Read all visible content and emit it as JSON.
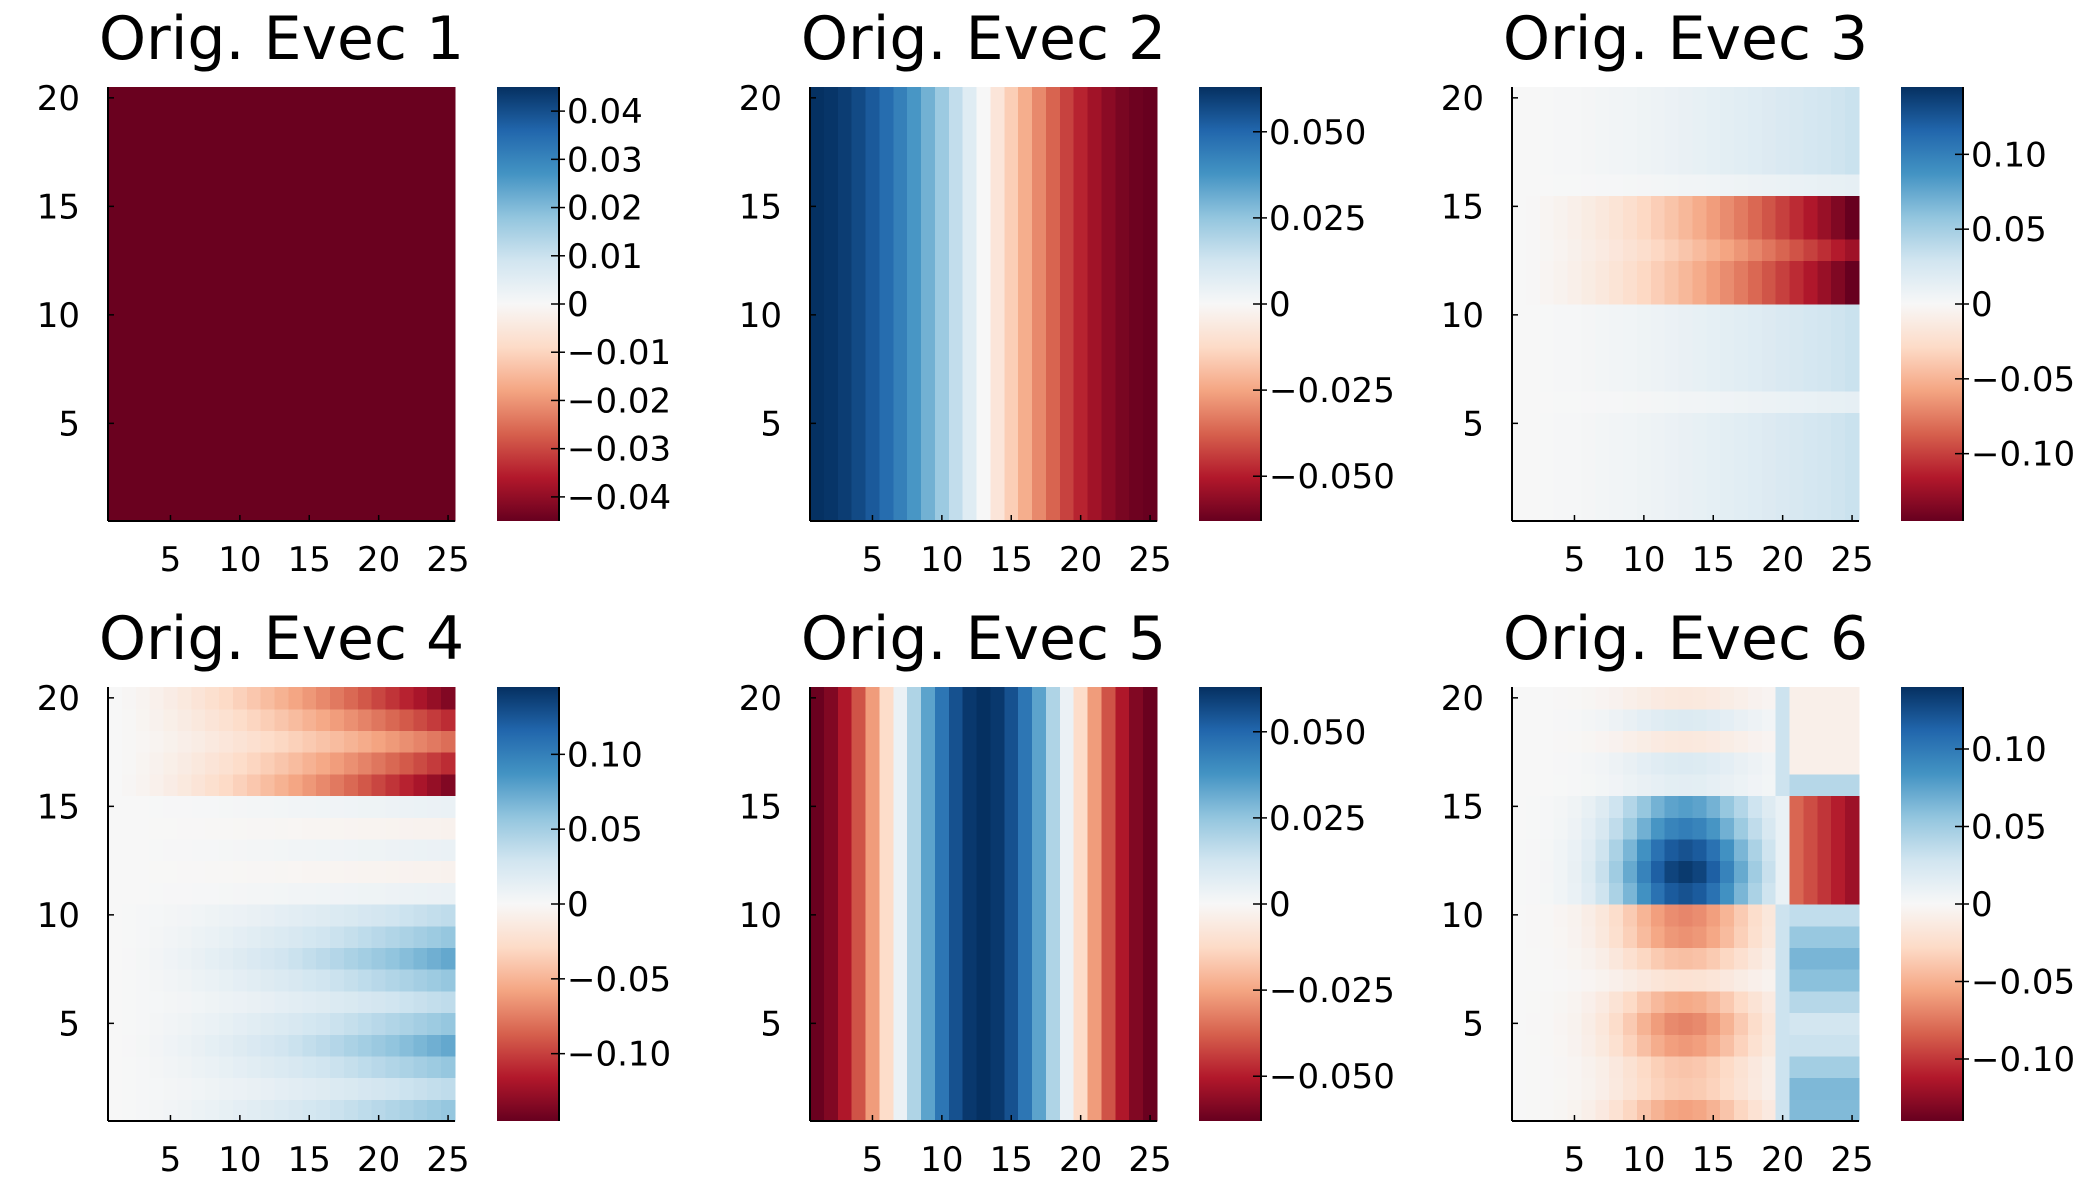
{
  "figure": {
    "layout": "grid",
    "rows": 2,
    "cols": 3
  },
  "colormap": {
    "name": "RdBu",
    "stops": [
      "#67001f",
      "#b2182b",
      "#d6604d",
      "#f4a582",
      "#fddbc7",
      "#f7f7f7",
      "#d1e5f0",
      "#92c5de",
      "#4393c3",
      "#2166ac",
      "#053061"
    ]
  },
  "chart_data": [
    {
      "type": "heatmap",
      "title": "Orig. Evec 1",
      "xlabel": "",
      "ylabel": "",
      "xlim": [
        0.5,
        25.5
      ],
      "ylim": [
        0.5,
        20.5
      ],
      "xticks": [
        5,
        10,
        15,
        20,
        25
      ],
      "yticks": [
        5,
        10,
        15,
        20
      ],
      "nx": 25,
      "ny": 20,
      "clim": [
        -0.045,
        0.045
      ],
      "cticks": [
        0.04,
        0.03,
        0.02,
        0.01,
        0,
        -0.01,
        -0.02,
        -0.03,
        -0.04
      ],
      "cticklabels": [
        "0.04",
        "0.03",
        "0.02",
        "0.01",
        "0",
        "−0.01",
        "−0.02",
        "−0.03",
        "−0.04"
      ],
      "pattern": "constant",
      "params": {
        "value": -0.0447
      }
    },
    {
      "type": "heatmap",
      "title": "Orig. Evec 2",
      "xlabel": "",
      "ylabel": "",
      "xlim": [
        0.5,
        25.5
      ],
      "ylim": [
        0.5,
        20.5
      ],
      "xticks": [
        5,
        10,
        15,
        20,
        25
      ],
      "yticks": [
        5,
        10,
        15,
        20
      ],
      "nx": 25,
      "ny": 20,
      "clim": [
        -0.063,
        0.063
      ],
      "cticks": [
        0.05,
        0.025,
        0,
        -0.025,
        -0.05
      ],
      "cticklabels": [
        "0.050",
        "0.025",
        "0",
        "−0.025",
        "−0.050"
      ],
      "pattern": "cos_x",
      "params": {
        "amp": 0.063,
        "freq": 1
      }
    },
    {
      "type": "heatmap",
      "title": "Orig. Evec 3",
      "xlabel": "",
      "ylabel": "",
      "xlim": [
        0.5,
        25.5
      ],
      "ylim": [
        0.5,
        20.5
      ],
      "xticks": [
        5,
        10,
        15,
        20,
        25
      ],
      "yticks": [
        5,
        10,
        15,
        20
      ],
      "nx": 25,
      "ny": 20,
      "clim": [
        -0.145,
        0.145
      ],
      "cticks": [
        0.1,
        0.05,
        0,
        -0.05,
        -0.1
      ],
      "cticklabels": [
        "0.10",
        "0.05",
        "0",
        "−0.05",
        "−0.10"
      ],
      "pattern": "band",
      "params": {
        "band": [
          11,
          15
        ],
        "band_amp": -0.145,
        "outside_amp": 0.032,
        "alt_row": 16,
        "alt_row_amp": 0.012
      }
    },
    {
      "type": "heatmap",
      "title": "Orig. Evec 4",
      "xlabel": "",
      "ylabel": "",
      "xlim": [
        0.5,
        25.5
      ],
      "ylim": [
        0.5,
        20.5
      ],
      "xticks": [
        5,
        10,
        15,
        20,
        25
      ],
      "yticks": [
        5,
        10,
        15,
        20
      ],
      "nx": 25,
      "ny": 20,
      "clim": [
        -0.145,
        0.145
      ],
      "cticks": [
        0.1,
        0.05,
        0,
        -0.05,
        -0.1
      ],
      "cticklabels": [
        "0.10",
        "0.05",
        "0",
        "−0.05",
        "−0.10"
      ],
      "pattern": "three_band",
      "params": {
        "top": [
          16,
          20
        ],
        "top_amp": -0.135,
        "mid": [
          11,
          15
        ],
        "mid_amp": 0.01,
        "bottom": [
          1,
          10
        ],
        "bottom_amp": 0.075
      }
    },
    {
      "type": "heatmap",
      "title": "Orig. Evec 5",
      "xlabel": "",
      "ylabel": "",
      "xlim": [
        0.5,
        25.5
      ],
      "ylim": [
        0.5,
        20.5
      ],
      "xticks": [
        5,
        10,
        15,
        20,
        25
      ],
      "yticks": [
        5,
        10,
        15,
        20
      ],
      "nx": 25,
      "ny": 20,
      "clim": [
        -0.063,
        0.063
      ],
      "cticks": [
        0.05,
        0.025,
        0,
        -0.025,
        -0.05
      ],
      "cticklabels": [
        "0.050",
        "0.025",
        "0",
        "−0.025",
        "−0.050"
      ],
      "pattern": "cos_x",
      "params": {
        "amp": -0.063,
        "freq": 2
      }
    },
    {
      "type": "heatmap",
      "title": "Orig. Evec 6",
      "xlabel": "",
      "ylabel": "",
      "xlim": [
        0.5,
        25.5
      ],
      "ylim": [
        0.5,
        20.5
      ],
      "xticks": [
        5,
        10,
        15,
        20,
        25
      ],
      "yticks": [
        5,
        10,
        15,
        20
      ],
      "nx": 25,
      "ny": 20,
      "clim": [
        -0.14,
        0.14
      ],
      "cticks": [
        0.1,
        0.05,
        0,
        -0.05,
        -0.1
      ],
      "cticklabels": [
        "0.10",
        "0.05",
        "0",
        "−0.05",
        "−0.10"
      ],
      "pattern": "blobs",
      "params": {
        "blob_top": [
          11,
          15
        ],
        "blob_top_amp": 0.135,
        "blob_bottom": [
          1,
          10
        ],
        "blob_bottom_amp": -0.07,
        "split_col": 20,
        "right_top_amp": -0.12,
        "right_bottom_amp": 0.065
      }
    }
  ]
}
